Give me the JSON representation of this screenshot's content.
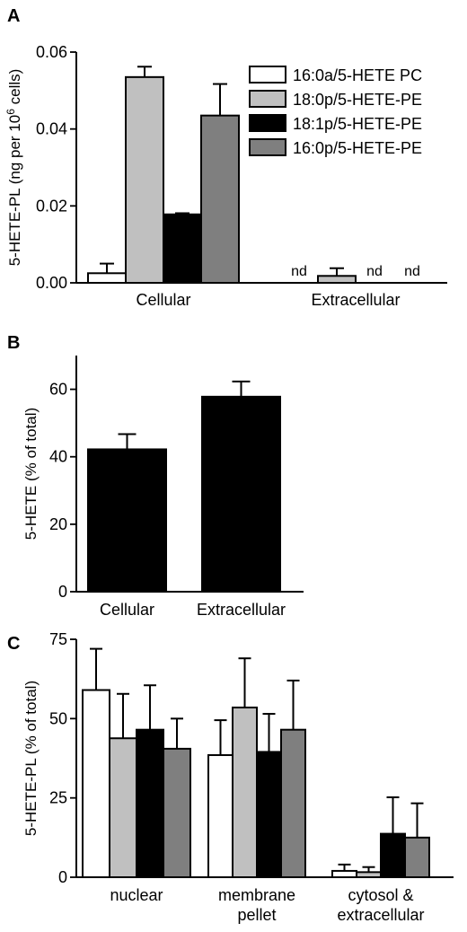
{
  "chart_data": [
    {
      "panel": "A",
      "type": "bar",
      "ylabel": "5-HETE-PL (ng per 10",
      "ylabel_sup": "6",
      "ylabel_end": " cells)",
      "ylim": [
        0,
        0.06
      ],
      "yticks": [
        "0.00",
        "0.02",
        "0.04",
        "0.06"
      ],
      "categories": [
        "Cellular",
        "Extracellular"
      ],
      "legend": "top-right",
      "series": [
        {
          "name": "16:0a/5-HETE PC",
          "color": "#ffffff",
          "values": [
            0.0025,
            0.0
          ],
          "errors": [
            0.0025,
            0.0
          ],
          "labels": [
            "",
            "nd"
          ]
        },
        {
          "name": "18:0p/5-HETE-PE",
          "color": "#c0c0c0",
          "values": [
            0.0535,
            0.0018
          ],
          "errors": [
            0.0027,
            0.002
          ],
          "labels": [
            "",
            ""
          ]
        },
        {
          "name": "18:1p/5-HETE-PE",
          "color": "#000000",
          "values": [
            0.0178,
            0.0
          ],
          "errors": [
            0.0003,
            0.0
          ],
          "labels": [
            "",
            "nd"
          ]
        },
        {
          "name": "16:0p/5-HETE-PE",
          "color": "#7f7f7f",
          "values": [
            0.0435,
            0.0
          ],
          "errors": [
            0.0082,
            0.0
          ],
          "labels": [
            "",
            "nd"
          ]
        }
      ]
    },
    {
      "panel": "B",
      "type": "bar",
      "ylabel": "5-HETE (% of total)",
      "ylim": [
        0,
        70
      ],
      "yticks": [
        "0",
        "20",
        "40",
        "60"
      ],
      "categories": [
        "Cellular",
        "Extracellular"
      ],
      "series": [
        {
          "color": "#000000",
          "values": [
            42.2,
            57.8
          ],
          "errors": [
            4.5,
            4.5
          ]
        }
      ]
    },
    {
      "panel": "C",
      "type": "bar",
      "ylabel": "5-HETE-PL (% of total)",
      "ylim": [
        0,
        75
      ],
      "yticks": [
        "0",
        "25",
        "50",
        "75"
      ],
      "categories": [
        [
          "nuclear"
        ],
        [
          "membrane",
          "pellet"
        ],
        [
          "cytosol &",
          "extracellular"
        ]
      ],
      "series": [
        {
          "color": "#ffffff",
          "values": [
            59.0,
            38.5,
            2.0
          ],
          "errors": [
            13.0,
            11.0,
            2.0
          ]
        },
        {
          "color": "#c0c0c0",
          "values": [
            43.8,
            53.5,
            1.6
          ],
          "errors": [
            14.0,
            15.5,
            1.6
          ]
        },
        {
          "color": "#000000",
          "values": [
            46.5,
            39.5,
            13.7
          ],
          "errors": [
            14.0,
            12.0,
            11.5
          ]
        },
        {
          "color": "#7f7f7f",
          "values": [
            40.5,
            46.5,
            12.5
          ],
          "errors": [
            9.5,
            15.5,
            10.8
          ]
        }
      ]
    }
  ]
}
